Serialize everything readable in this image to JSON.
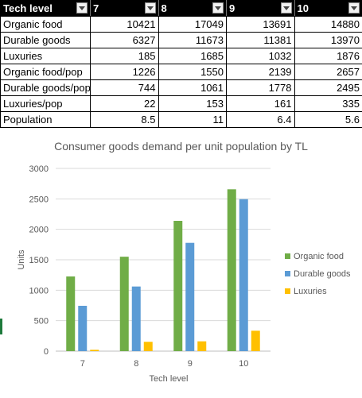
{
  "table": {
    "headers": [
      "Tech level",
      "7",
      "8",
      "9",
      "10"
    ],
    "rows": [
      {
        "label": "Organic food",
        "values": [
          "10421",
          "17049",
          "13691",
          "14880"
        ]
      },
      {
        "label": "Durable goods",
        "values": [
          "6327",
          "11673",
          "11381",
          "13970"
        ]
      },
      {
        "label": "Luxuries",
        "values": [
          "185",
          "1685",
          "1032",
          "1876"
        ]
      },
      {
        "label": "Organic food/pop",
        "values": [
          "1226",
          "1550",
          "2139",
          "2657"
        ]
      },
      {
        "label": "Durable goods/pop",
        "values": [
          "744",
          "1061",
          "1778",
          "2495"
        ]
      },
      {
        "label": "Luxuries/pop",
        "values": [
          "22",
          "153",
          "161",
          "335"
        ]
      },
      {
        "label": "Population",
        "values": [
          "8.5",
          "11",
          "6.4",
          "5.6"
        ]
      }
    ]
  },
  "chart_data": {
    "type": "bar",
    "title": "Consumer goods demand per unit population by TL",
    "xlabel": "Tech level",
    "ylabel": "Units",
    "categories": [
      "7",
      "8",
      "9",
      "10"
    ],
    "series": [
      {
        "name": "Organic food",
        "color": "#70ad47",
        "values": [
          1226,
          1550,
          2139,
          2657
        ]
      },
      {
        "name": "Durable goods",
        "color": "#5b9bd5",
        "values": [
          744,
          1061,
          1778,
          2495
        ]
      },
      {
        "name": "Luxuries",
        "color": "#ffc000",
        "values": [
          22,
          153,
          161,
          335
        ]
      }
    ],
    "ylim": [
      0,
      3000
    ],
    "yticks": [
      "0",
      "500",
      "1000",
      "1500",
      "2000",
      "2500",
      "3000"
    ],
    "grid": true,
    "legend": "right"
  }
}
